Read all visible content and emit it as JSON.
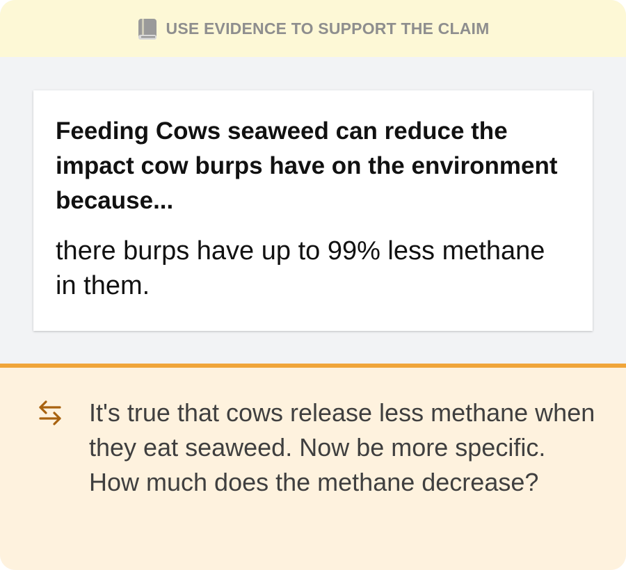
{
  "banner": {
    "icon": "book-icon",
    "title": "USE EVIDENCE TO SUPPORT THE CLAIM"
  },
  "response": {
    "prompt": "Feeding Cows seaweed can reduce the impact cow burps have on the environment because...",
    "answer": "there burps have up to 99% less methane in them."
  },
  "feedback": {
    "icon": "swap-arrows-icon",
    "message": "It's true that cows release less methane when they eat seaweed. Now be more specific. How much does the methane decrease?"
  },
  "colors": {
    "banner_bg": "#fdf8d6",
    "body_bg": "#f2f3f5",
    "accent": "#f0a53a",
    "feedback_bg": "#fef2de",
    "icon_color": "#a8620f"
  }
}
